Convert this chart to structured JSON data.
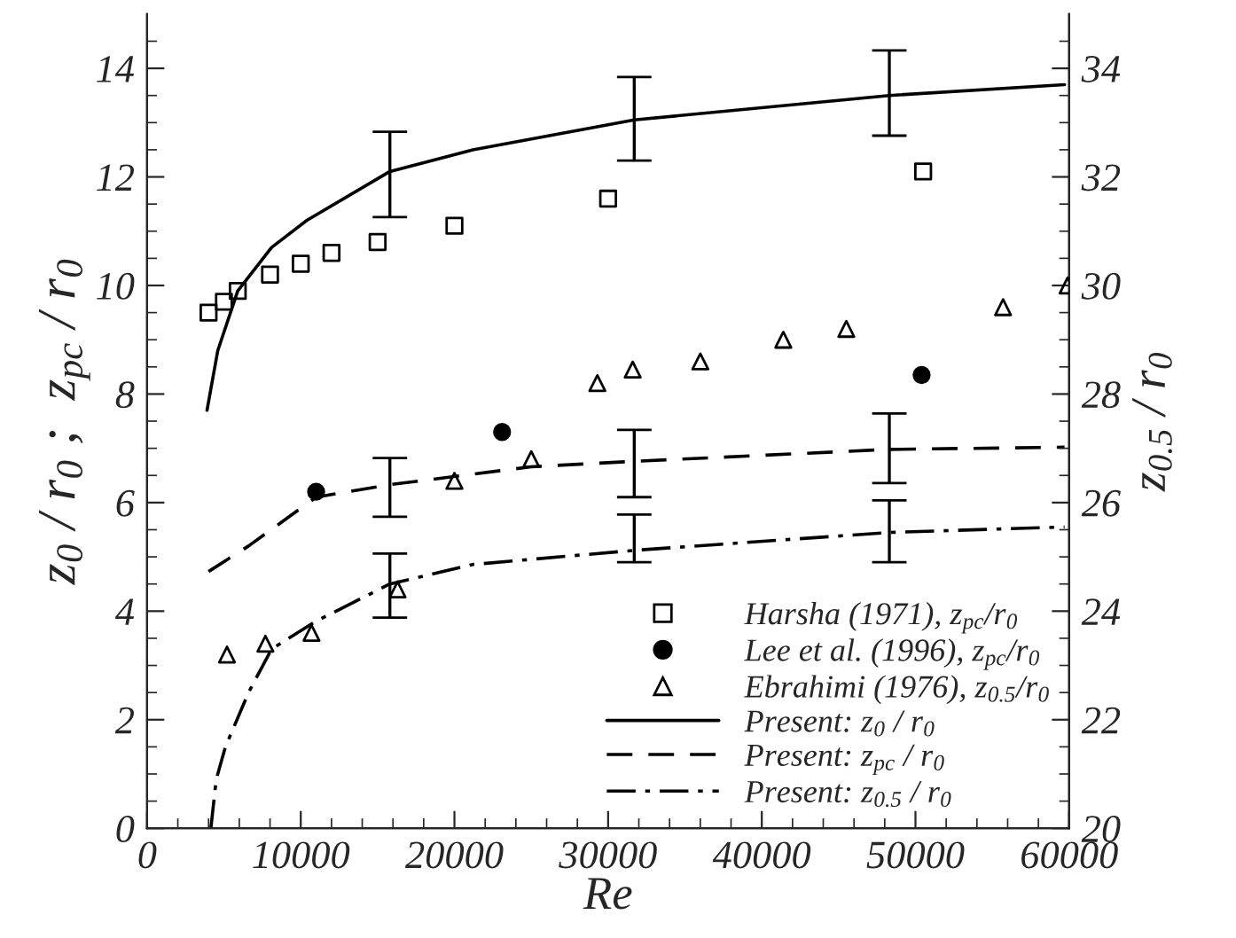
{
  "chart_data": {
    "type": "scatter",
    "xlabel": "Re",
    "ylabel": "z$_{0}$ / r$_{0}$ ;  z$_{pc}$ / r$_{0}$",
    "y2label": "z$_{0.5}$ / r$_{0}$",
    "xlim": [
      0,
      60000
    ],
    "ylim": [
      0,
      15
    ],
    "y2lim": [
      20,
      35
    ],
    "xticks": [
      0,
      {
        "value": 2000,
        "label": null
      },
      {
        "value": 4000,
        "label": null
      },
      {
        "value": 6000,
        "label": null
      },
      {
        "value": 8000,
        "label": null
      },
      10000,
      {
        "value": 12000,
        "label": null
      },
      {
        "value": 14000,
        "label": null
      },
      {
        "value": 16000,
        "label": null
      },
      {
        "value": 18000,
        "label": null
      },
      20000,
      {
        "value": 22000,
        "label": null
      },
      {
        "value": 24000,
        "label": null
      },
      {
        "value": 26000,
        "label": null
      },
      {
        "value": 28000,
        "label": null
      },
      30000,
      {
        "value": 32000,
        "label": null
      },
      {
        "value": 34000,
        "label": null
      },
      {
        "value": 36000,
        "label": null
      },
      {
        "value": 38000,
        "label": null
      },
      40000,
      {
        "value": 42000,
        "label": null
      },
      {
        "value": 44000,
        "label": null
      },
      {
        "value": 46000,
        "label": null
      },
      {
        "value": 48000,
        "label": null
      },
      50000,
      {
        "value": 52000,
        "label": null
      },
      {
        "value": 54000,
        "label": null
      },
      {
        "value": 56000,
        "label": null
      },
      {
        "value": 58000,
        "label": null
      },
      60000
    ],
    "yticks": [
      0,
      {
        "value": 0.5,
        "label": null
      },
      {
        "value": 1,
        "label": null
      },
      {
        "value": 1.5,
        "label": null
      },
      2,
      {
        "value": 2.5,
        "label": null
      },
      {
        "value": 3,
        "label": null
      },
      {
        "value": 3.5,
        "label": null
      },
      4,
      {
        "value": 4.5,
        "label": null
      },
      {
        "value": 5,
        "label": null
      },
      {
        "value": 5.5,
        "label": null
      },
      6,
      {
        "value": 6.5,
        "label": null
      },
      {
        "value": 7,
        "label": null
      },
      {
        "value": 7.5,
        "label": null
      },
      8,
      {
        "value": 8.5,
        "label": null
      },
      {
        "value": 9,
        "label": null
      },
      {
        "value": 9.5,
        "label": null
      },
      10,
      {
        "value": 10.5,
        "label": null
      },
      {
        "value": 11,
        "label": null
      },
      {
        "value": 11.5,
        "label": null
      },
      12,
      {
        "value": 12.5,
        "label": null
      },
      {
        "value": 13,
        "label": null
      },
      {
        "value": 13.5,
        "label": null
      },
      14,
      {
        "value": 14.5,
        "label": null
      }
    ],
    "y2ticks": [
      20,
      {
        "value": 20.5,
        "label": null
      },
      {
        "value": 21,
        "label": null
      },
      {
        "value": 21.5,
        "label": null
      },
      22,
      {
        "value": 22.5,
        "label": null
      },
      {
        "value": 23,
        "label": null
      },
      {
        "value": 23.5,
        "label": null
      },
      24,
      {
        "value": 24.5,
        "label": null
      },
      {
        "value": 25,
        "label": null
      },
      {
        "value": 25.5,
        "label": null
      },
      26,
      {
        "value": 26.5,
        "label": null
      },
      {
        "value": 27,
        "label": null
      },
      {
        "value": 27.5,
        "label": null
      },
      28,
      {
        "value": 28.5,
        "label": null
      },
      {
        "value": 29,
        "label": null
      },
      {
        "value": 29.5,
        "label": null
      },
      30,
      {
        "value": 30.5,
        "label": null
      },
      {
        "value": 31,
        "label": null
      },
      {
        "value": 31.5,
        "label": null
      },
      32,
      {
        "value": 32.5,
        "label": null
      },
      {
        "value": 33,
        "label": null
      },
      {
        "value": 33.5,
        "label": null
      },
      34,
      {
        "value": 34.5,
        "label": null
      }
    ],
    "grid": false,
    "legend": "bottom right",
    "series": [
      {
        "name": "Harsha (1971), z$_{pc}$/r$_{0}$",
        "marker": "square",
        "color": "#000000",
        "x": [
          4000,
          5000,
          5900,
          8000,
          10000,
          12000,
          15000,
          20000,
          30000,
          50500
        ],
        "values": [
          9.5,
          9.7,
          9.9,
          10.2,
          10.4,
          10.6,
          10.8,
          11.1,
          11.6,
          12.1
        ]
      },
      {
        "name": "Lee et al. (1996), z$_{pc}$/r$_{0}$",
        "marker": "circle",
        "color": "#000000",
        "x": [
          11000,
          23100,
          50400
        ],
        "values": [
          6.2,
          7.3,
          8.35
        ]
      },
      {
        "name": "Ebrahimi (1976), z$_{0.5}$/r$_{0}$",
        "marker": "triangle",
        "color": "#000000",
        "axis": "y2",
        "x": [
          5200,
          7700,
          10700,
          16300,
          20000,
          25000,
          29300,
          31600,
          36000,
          41400,
          45500,
          55700,
          59900
        ],
        "values": [
          23.2,
          23.4,
          23.6,
          24.4,
          26.4,
          26.8,
          28.2,
          28.45,
          28.6,
          29.0,
          29.2,
          29.6,
          30.0
        ]
      },
      {
        "name": "Present: z$_{0}$ / r$_{0}$",
        "type": "line",
        "line_style": "solid",
        "color": "#000000",
        "x": [
          3900,
          4600,
          5900,
          8100,
          10400,
          15800,
          21200,
          31700,
          48300,
          59700
        ],
        "values": [
          7.7,
          8.8,
          9.9,
          10.7,
          11.2,
          12.1,
          12.5,
          13.05,
          13.5,
          13.7
        ],
        "errors": [
          null,
          null,
          null,
          null,
          null,
          [
            11.26,
            12.83
          ],
          null,
          [
            12.3,
            13.84
          ],
          [
            12.76,
            14.33
          ],
          null
        ]
      },
      {
        "name": "Present: z$_{pc}$ / r$_{0}$",
        "type": "line",
        "line_style": "dashed",
        "color": "#000000",
        "x": [
          4000,
          6600,
          11000,
          15800,
          25000,
          31700,
          48300,
          59700
        ],
        "values": [
          4.73,
          5.2,
          6.1,
          6.33,
          6.66,
          6.76,
          6.98,
          7.02
        ],
        "errors": [
          null,
          null,
          null,
          [
            5.74,
            6.82
          ],
          null,
          [
            6.1,
            7.34
          ],
          [
            6.36,
            7.64
          ],
          null
        ]
      },
      {
        "name": "Present: z$_{0.5}$ / r$_{0}$",
        "type": "line",
        "line_style": "dashdot",
        "color": "#000000",
        "axis": "y2",
        "x": [
          4150,
          4500,
          5100,
          6600,
          8100,
          10900,
          15800,
          21200,
          31700,
          48300,
          59700
        ],
        "values": [
          20.0,
          20.9,
          21.5,
          22.5,
          23.3,
          23.8,
          24.5,
          24.86,
          25.12,
          25.45,
          25.55
        ],
        "errors": [
          null,
          null,
          null,
          null,
          null,
          null,
          [
            23.88,
            25.06
          ],
          null,
          [
            24.9,
            25.78
          ],
          [
            24.9,
            26.04
          ],
          null
        ]
      }
    ]
  }
}
